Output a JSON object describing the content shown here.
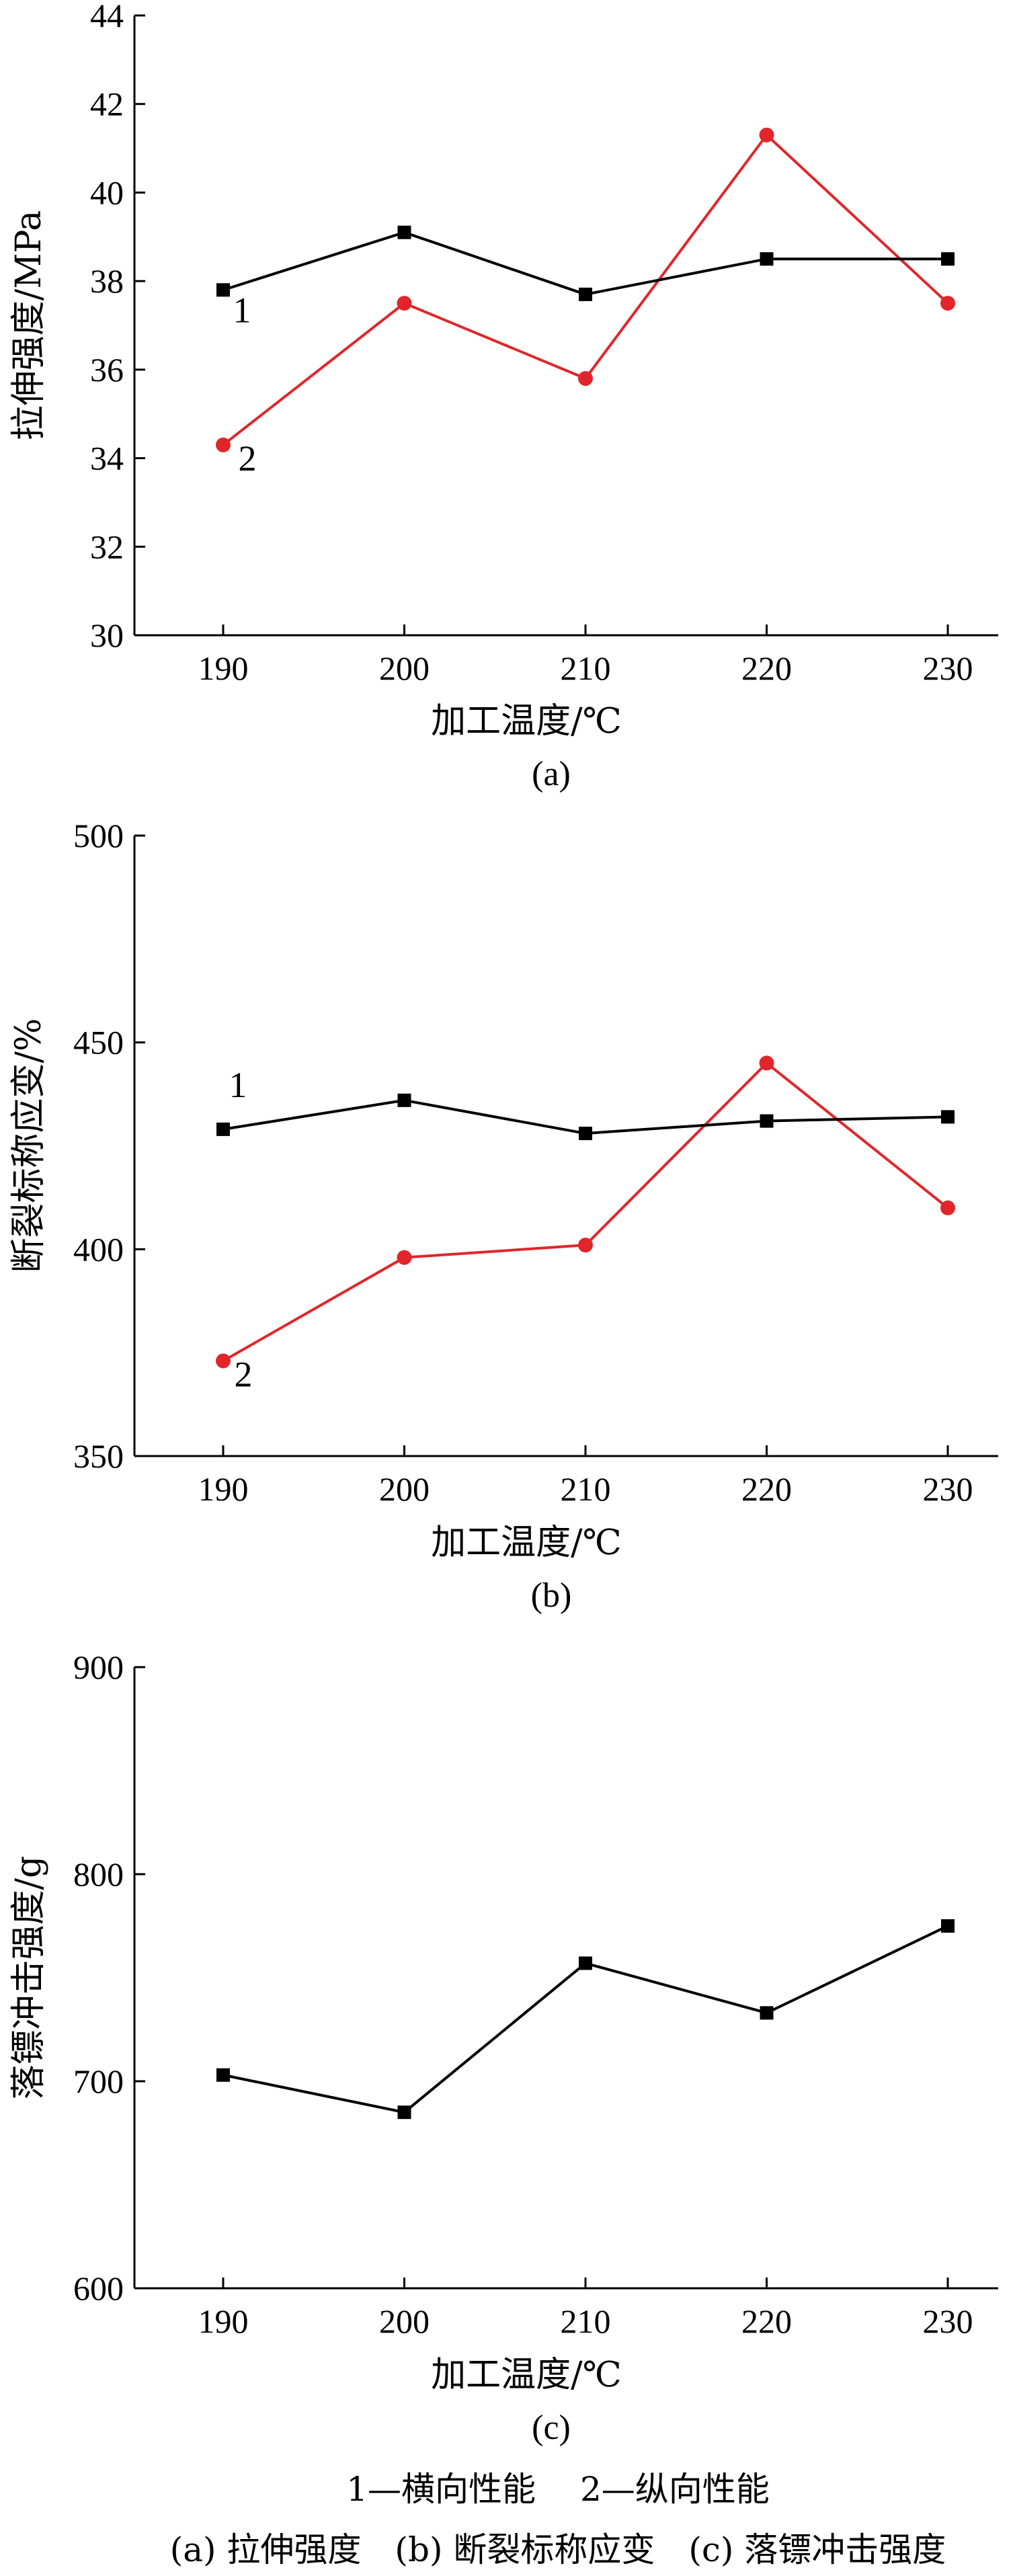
{
  "colors": {
    "series1": "#000000",
    "series2": "#e0262b"
  },
  "chart_data": [
    {
      "type": "line",
      "subcaption": "(a)",
      "xlabel": "加工温度/℃",
      "ylabel": "拉伸强度/MPa",
      "ylim": [
        30,
        44
      ],
      "yticks": [
        30,
        32,
        34,
        36,
        38,
        40,
        42,
        44
      ],
      "x": [
        190,
        200,
        210,
        220,
        230
      ],
      "series": [
        {
          "name": "1",
          "marker": "square",
          "color": "#000000",
          "values": [
            37.8,
            39.1,
            37.7,
            38.5,
            38.5
          ]
        },
        {
          "name": "2",
          "marker": "circle",
          "color": "#e0262b",
          "values": [
            34.3,
            37.5,
            35.8,
            41.3,
            37.5
          ]
        }
      ]
    },
    {
      "type": "line",
      "subcaption": "(b)",
      "xlabel": "加工温度/℃",
      "ylabel": "断裂标称应变/%",
      "ylim": [
        350,
        500
      ],
      "yticks": [
        350,
        400,
        450,
        500
      ],
      "x": [
        190,
        200,
        210,
        220,
        230
      ],
      "series": [
        {
          "name": "1",
          "marker": "square",
          "color": "#000000",
          "values": [
            429,
            436,
            428,
            431,
            432
          ]
        },
        {
          "name": "2",
          "marker": "circle",
          "color": "#e0262b",
          "values": [
            373,
            398,
            401,
            445,
            410
          ]
        }
      ]
    },
    {
      "type": "line",
      "subcaption": "(c)",
      "xlabel": "加工温度/℃",
      "ylabel": "落镖冲击强度/g",
      "ylim": [
        600,
        900
      ],
      "yticks": [
        600,
        700,
        800,
        900
      ],
      "x": [
        190,
        200,
        210,
        220,
        230
      ],
      "series": [
        {
          "name": "",
          "marker": "square",
          "color": "#000000",
          "values": [
            703,
            685,
            757,
            733,
            775
          ]
        }
      ]
    }
  ],
  "caption": {
    "line1": "1—横向性能　 2—纵向性能",
    "line2": "(a) 拉伸强度　(b) 断裂标称应变　(c) 落镖冲击强度"
  }
}
